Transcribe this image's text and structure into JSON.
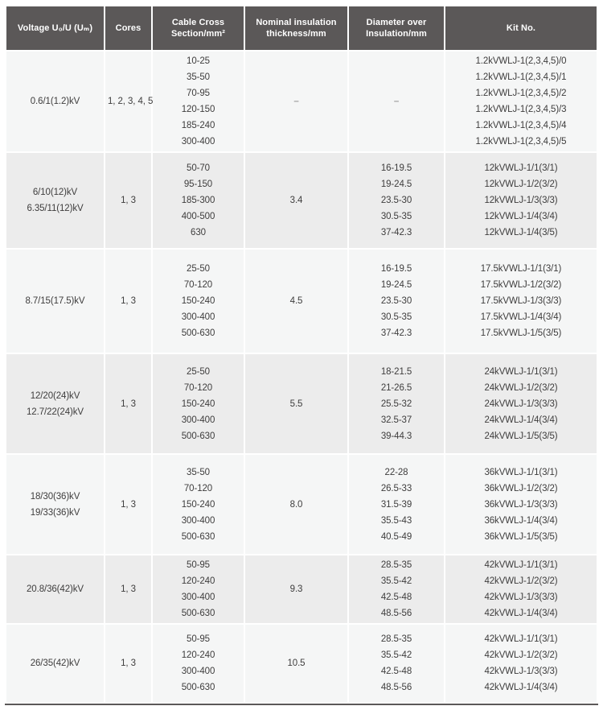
{
  "theme": {
    "header_bg": "#5b5858",
    "header_text": "#ffffff",
    "row_odd_bg": "#f5f6f6",
    "row_even_bg": "#ececec",
    "body_text": "#3e3d3d",
    "dash_color": "#a2a2a2",
    "bottom_rule_color": "#5b5858"
  },
  "table": {
    "columns": [
      {
        "key": "voltage",
        "label_lines": [
          "Voltage U₀/U (Uₘ)"
        ]
      },
      {
        "key": "cores",
        "label_lines": [
          "Cores"
        ]
      },
      {
        "key": "cross_section",
        "label_lines": [
          "Cable Cross",
          "Section/mm²"
        ]
      },
      {
        "key": "thickness",
        "label_lines": [
          "Nominal insulation",
          "thickness/mm"
        ]
      },
      {
        "key": "diameter",
        "label_lines": [
          "Diameter over",
          "Insulation/mm"
        ]
      },
      {
        "key": "kit_no",
        "label_lines": [
          "Kit No."
        ]
      }
    ],
    "rows": [
      {
        "voltage": [
          "0.6/1(1.2)kV"
        ],
        "cores": [
          "1, 2, 3, 4, 5"
        ],
        "cross_section": [
          "10-25",
          "35-50",
          "70-95",
          "120-150",
          "185-240",
          "300-400"
        ],
        "thickness": [
          "–"
        ],
        "diameter": [
          "–"
        ],
        "kit_no": [
          "1.2kVWLJ-1(2,3,4,5)/0",
          "1.2kVWLJ-1(2,3,4,5)/1",
          "1.2kVWLJ-1(2,3,4,5)/2",
          "1.2kVWLJ-1(2,3,4,5)/3",
          "1.2kVWLJ-1(2,3,4,5)/4",
          "1.2kVWLJ-1(2,3,4,5)/5"
        ]
      },
      {
        "voltage": [
          "6/10(12)kV",
          "6.35/11(12)kV"
        ],
        "cores": [
          "1, 3"
        ],
        "cross_section": [
          "50-70",
          "95-150",
          "185-300",
          "400-500",
          "630"
        ],
        "thickness": [
          "3.4"
        ],
        "diameter": [
          "16-19.5",
          "19-24.5",
          "23.5-30",
          "30.5-35",
          "37-42.3"
        ],
        "kit_no": [
          "12kVWLJ-1/1(3/1)",
          "12kVWLJ-1/2(3/2)",
          "12kVWLJ-1/3(3/3)",
          "12kVWLJ-1/4(3/4)",
          "12kVWLJ-1/4(3/5)"
        ]
      },
      {
        "voltage": [
          "8.7/15(17.5)kV"
        ],
        "cores": [
          "1, 3"
        ],
        "cross_section": [
          "25-50",
          "70-120",
          "150-240",
          "300-400",
          "500-630"
        ],
        "thickness": [
          "4.5"
        ],
        "diameter": [
          "16-19.5",
          "19-24.5",
          "23.5-30",
          "30.5-35",
          "37-42.3"
        ],
        "kit_no": [
          "17.5kVWLJ-1/1(3/1)",
          "17.5kVWLJ-1/2(3/2)",
          "17.5kVWLJ-1/3(3/3)",
          "17.5kVWLJ-1/4(3/4)",
          "17.5kVWLJ-1/5(3/5)"
        ]
      },
      {
        "voltage": [
          "12/20(24)kV",
          "12.7/22(24)kV"
        ],
        "cores": [
          "1, 3"
        ],
        "cross_section": [
          "25-50",
          "70-120",
          "150-240",
          "300-400",
          "500-630"
        ],
        "thickness": [
          "5.5"
        ],
        "diameter": [
          "18-21.5",
          "21-26.5",
          "25.5-32",
          "32.5-37",
          "39-44.3"
        ],
        "kit_no": [
          "24kVWLJ-1/1(3/1)",
          "24kVWLJ-1/2(3/2)",
          "24kVWLJ-1/3(3/3)",
          "24kVWLJ-1/4(3/4)",
          "24kVWLJ-1/5(3/5)"
        ]
      },
      {
        "voltage": [
          "18/30(36)kV",
          "19/33(36)kV"
        ],
        "cores": [
          "1, 3"
        ],
        "cross_section": [
          "35-50",
          "70-120",
          "150-240",
          "300-400",
          "500-630"
        ],
        "thickness": [
          "8.0"
        ],
        "diameter": [
          "22-28",
          "26.5-33",
          "31.5-39",
          "35.5-43",
          "40.5-49"
        ],
        "kit_no": [
          "36kVWLJ-1/1(3/1)",
          "36kVWLJ-1/2(3/2)",
          "36kVWLJ-1/3(3/3)",
          "36kVWLJ-1/4(3/4)",
          "36kVWLJ-1/5(3/5)"
        ]
      },
      {
        "voltage": [
          "20.8/36(42)kV"
        ],
        "cores": [
          "1, 3"
        ],
        "cross_section": [
          "50-95",
          "120-240",
          "300-400",
          "500-630"
        ],
        "thickness": [
          "9.3"
        ],
        "diameter": [
          "28.5-35",
          "35.5-42",
          "42.5-48",
          "48.5-56"
        ],
        "kit_no": [
          "42kVWLJ-1/1(3/1)",
          "42kVWLJ-1/2(3/2)",
          "42kVWLJ-1/3(3/3)",
          "42kVWLJ-1/4(3/4)"
        ]
      },
      {
        "voltage": [
          "26/35(42)kV"
        ],
        "cores": [
          "1, 3"
        ],
        "cross_section": [
          "50-95",
          "120-240",
          "300-400",
          "500-630"
        ],
        "thickness": [
          "10.5"
        ],
        "diameter": [
          "28.5-35",
          "35.5-42",
          "42.5-48",
          "48.5-56"
        ],
        "kit_no": [
          "42kVWLJ-1/1(3/1)",
          "42kVWLJ-1/2(3/2)",
          "42kVWLJ-1/3(3/3)",
          "42kVWLJ-1/4(3/4)"
        ]
      }
    ]
  }
}
